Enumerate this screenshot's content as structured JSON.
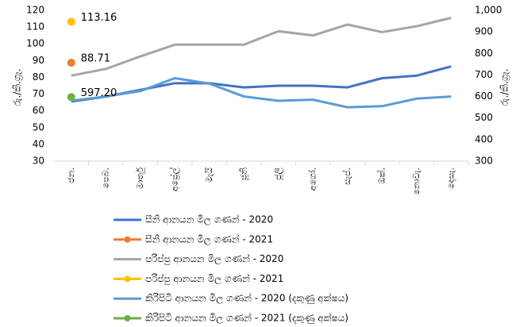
{
  "chart_data": {
    "type": "line",
    "ylabel": "රු./කි.ග්‍රෑ.",
    "y2label": "රු./කි.ග්‍රෑ.",
    "categories": [
      "ජන.",
      "පෙබ.",
      "මාර්තු",
      "අප්‍රේල්",
      "මැයි",
      "ජූනි",
      "ජූලි",
      "අගෝ.",
      "සැප්.",
      "ඔක්.",
      "නොවැ.",
      "දෙසැ."
    ],
    "ylim": [
      30,
      120
    ],
    "yticks": [
      30,
      40,
      50,
      60,
      70,
      80,
      90,
      100,
      110,
      120
    ],
    "y2lim": [
      300,
      1000
    ],
    "y2ticks": [
      300,
      400,
      500,
      600,
      700,
      800,
      900,
      {
        "value": 1000,
        "label": "1,000"
      }
    ],
    "grid": false,
    "legend": "bottom",
    "series": [
      {
        "name": "සීනි  ආනයන මිල ගණන් - 2020",
        "color": "#4472c4",
        "values": [
          65.5,
          68.5,
          72.5,
          76.5,
          76.5,
          74,
          75,
          75,
          74,
          79.5,
          81,
          86.5
        ]
      },
      {
        "name": "සීනි  ආනයන මිල ගණන් - 2021",
        "color": "#ed7d31",
        "marker": "circle",
        "values": [
          88.71,
          null,
          null,
          null,
          null,
          null,
          null,
          null,
          null,
          null,
          null,
          null
        ]
      },
      {
        "name": "පරිප්පු ආනයන මිල ගණන් - 2020",
        "color": "#a5a5a5",
        "values": [
          81,
          85,
          92.5,
          99.5,
          99.5,
          99.5,
          107.5,
          105,
          111.5,
          107,
          110.5,
          115.5
        ]
      },
      {
        "name": "පරිප්පු ආනයන මිල ගණන් - 2021",
        "color": "#ffc000",
        "marker": "circle",
        "values": [
          113.16,
          null,
          null,
          null,
          null,
          null,
          null,
          null,
          null,
          null,
          null,
          null
        ]
      },
      {
        "name": "කිරිපිටි ආනයන මිල ගණන් - 2020 (දකුණු අක්ෂය)",
        "color": "#5b9bd5",
        "axis": "y2",
        "values": [
          580,
          600,
          625,
          685,
          660,
          600,
          580,
          585,
          550,
          555,
          590,
          600
        ]
      },
      {
        "name": "කිරිපිටි ආනයන මිල ගණන් - 2021 (දකුණු අක්ෂය)",
        "color": "#70ad47",
        "axis": "y2",
        "marker": "circle",
        "values": [
          597.2,
          null,
          null,
          null,
          null,
          null,
          null,
          null,
          null,
          null,
          null,
          null
        ],
        "value_labels": [
          "597.20",
          null,
          null,
          null,
          null,
          null,
          null,
          null,
          null,
          null,
          null,
          null
        ]
      }
    ]
  }
}
